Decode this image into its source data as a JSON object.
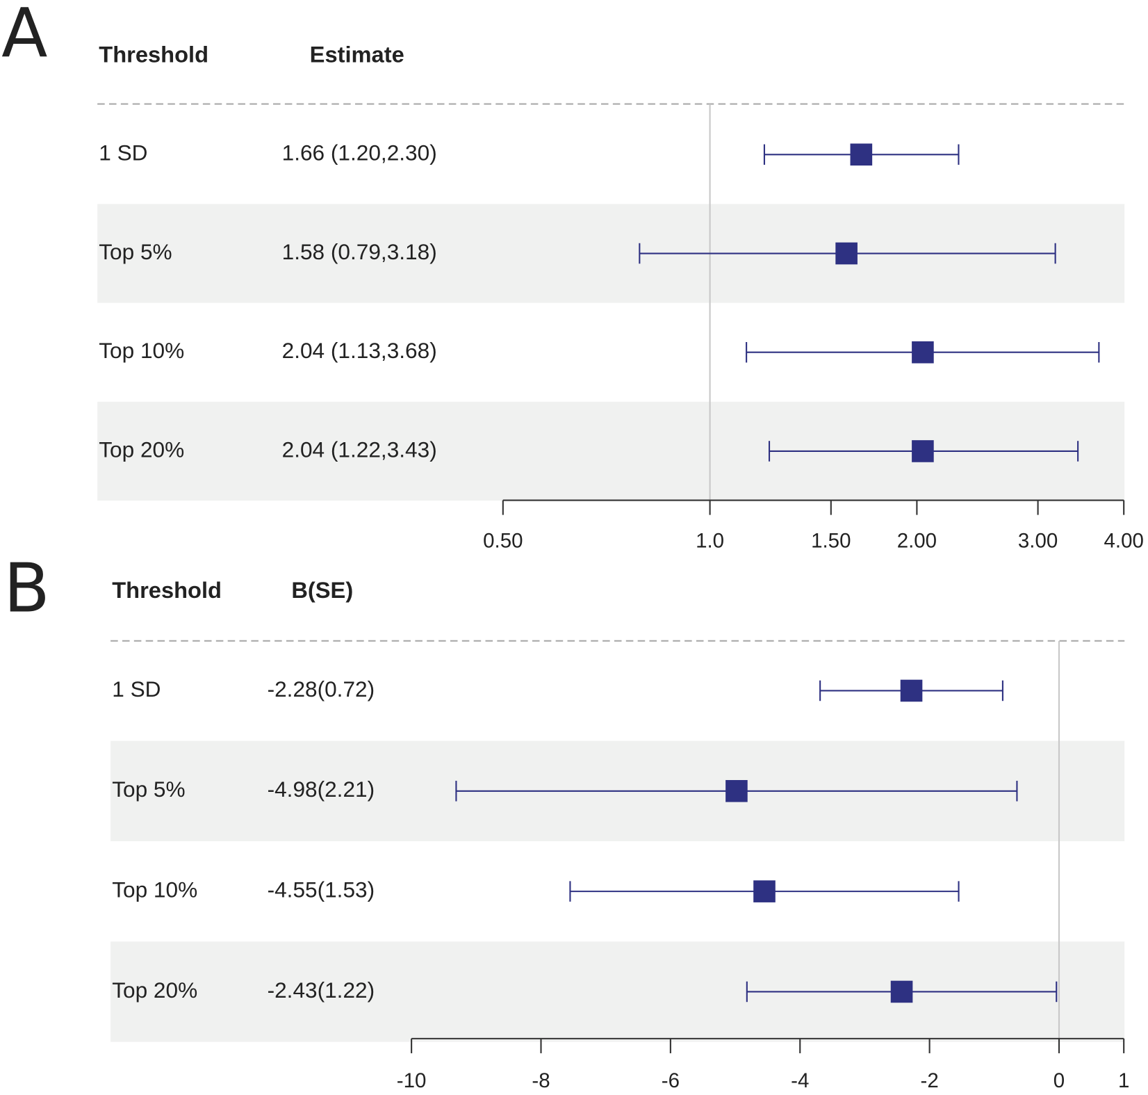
{
  "chart_data": [
    {
      "type": "forest",
      "panel": "A",
      "column_headers": [
        "Threshold",
        "Estimate"
      ],
      "categories": [
        "1 SD",
        "Top 5%",
        "Top 10%",
        "Top 20%"
      ],
      "values": [
        1.66,
        1.58,
        2.04,
        2.04
      ],
      "lower": [
        1.2,
        0.79,
        1.13,
        1.22
      ],
      "upper": [
        2.3,
        3.18,
        3.68,
        3.43
      ],
      "value_labels": [
        "1.66 (1.20,2.30)",
        "1.58 (0.79,3.18)",
        "2.04 (1.13,3.68)",
        "2.04 (1.22,3.43)"
      ],
      "log_scale": true,
      "xlim": [
        0.5,
        4
      ],
      "xticks": [
        {
          "value": 0.5,
          "label": "0.50"
        },
        {
          "value": 1,
          "label": "1.0"
        },
        {
          "value": 1.5,
          "label": "1.50"
        },
        {
          "value": 2,
          "label": "2.00"
        },
        {
          "value": 3,
          "label": "3.00"
        },
        {
          "value": 4,
          "label": "4.00"
        }
      ],
      "ref_line": 1,
      "color": "#2e3182"
    },
    {
      "type": "forest",
      "panel": "B",
      "column_headers": [
        "Threshold",
        "B(SE)"
      ],
      "categories": [
        "1 SD",
        "Top 5%",
        "Top 10%",
        "Top 20%"
      ],
      "values": [
        -2.28,
        -4.98,
        -4.55,
        -2.43
      ],
      "lower": [
        -3.69,
        -9.31,
        -7.55,
        -4.82
      ],
      "upper": [
        -0.87,
        -0.65,
        -1.55,
        -0.04
      ],
      "value_labels": [
        "-2.28(0.72)",
        "-4.98(2.21)",
        "-4.55(1.53)",
        "-2.43(1.22)"
      ],
      "log_scale": false,
      "xlim": [
        -10,
        1
      ],
      "xticks": [
        -10,
        -8,
        -6,
        -4,
        -2,
        0,
        1
      ],
      "ref_line": 0,
      "color": "#2e3182"
    }
  ]
}
